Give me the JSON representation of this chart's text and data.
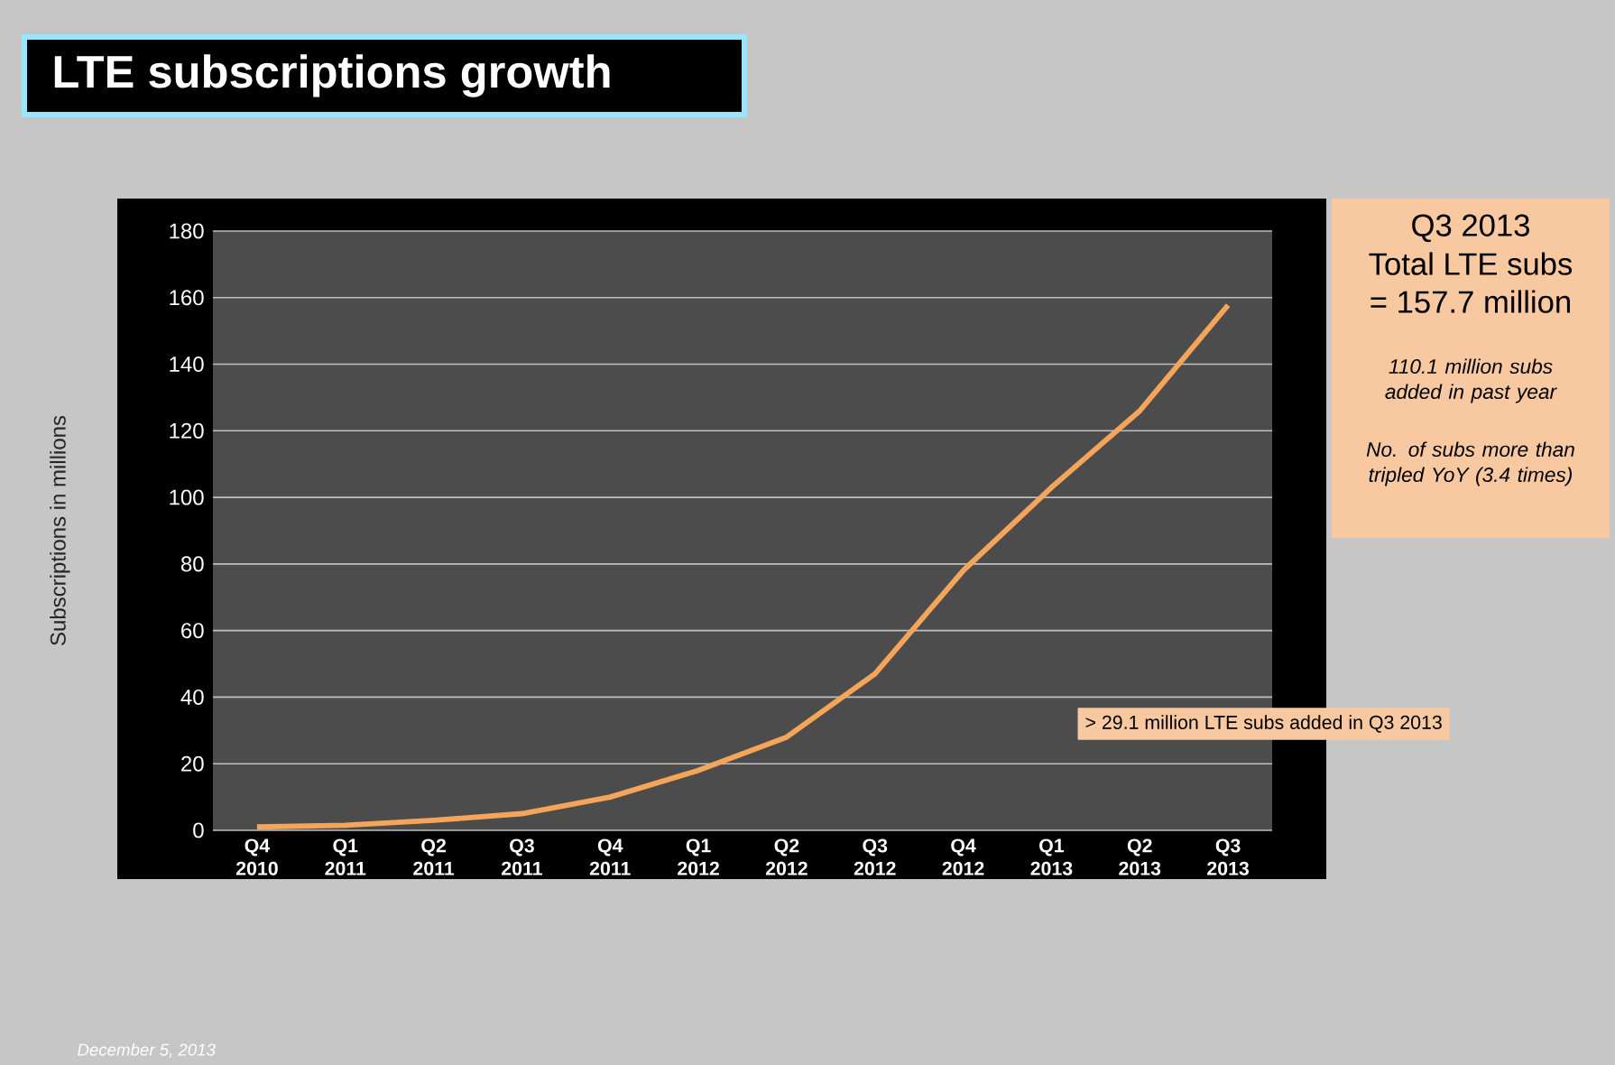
{
  "chart_data": {
    "type": "line",
    "title": "LTE subscriptions growth",
    "ylabel": "Subscriptions in millions",
    "categories": [
      "Q4 2010",
      "Q1 2011",
      "Q2 2011",
      "Q3 2011",
      "Q4 2011",
      "Q1 2012",
      "Q2 2012",
      "Q3 2012",
      "Q4 2012",
      "Q1 2013",
      "Q2 2013",
      "Q3 2013"
    ],
    "values": [
      1,
      1.5,
      3,
      5,
      10,
      18,
      28,
      47,
      78,
      103,
      126,
      157.7
    ],
    "color": "#f5a55a",
    "ylim": [
      0,
      180
    ],
    "yticks": [
      0,
      20,
      40,
      60,
      80,
      100,
      120,
      140,
      160,
      180
    ],
    "grid": "y",
    "annotations": [
      "Q3 2013",
      "Total LTE subs",
      "= 157.7 million",
      "110.1 million subs added in past year",
      "No. of subs more than tripled YoY (3.4 times)",
      "> 29.1 million LTE subs added in Q3 2013",
      "December 5, 2013"
    ]
  }
}
